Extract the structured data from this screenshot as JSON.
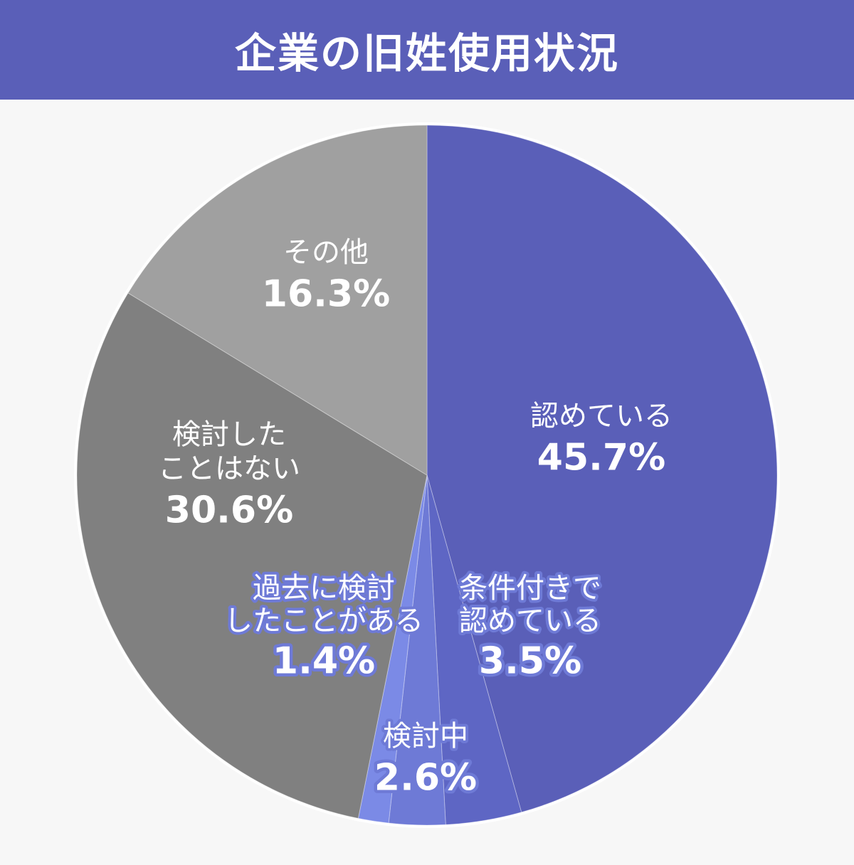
{
  "header": {
    "title": "企業の旧姓使用状況"
  },
  "chart_data": {
    "type": "pie",
    "title": "企業の旧姓使用状況",
    "unit": "%",
    "start": "12 o'clock",
    "direction": "clockwise",
    "slices": [
      {
        "label_lines": [
          "認めている"
        ],
        "value": 45.7,
        "value_text": "45.7%",
        "color": "#5a5fb8",
        "label_style": "plain"
      },
      {
        "label_lines": [
          "条件付きで",
          "認めている"
        ],
        "value": 3.5,
        "value_text": "3.5%",
        "color": "#5e66c4",
        "label_style": "halo"
      },
      {
        "label_lines": [
          "検討中"
        ],
        "value": 2.6,
        "value_text": "2.6%",
        "color": "#6e7ad6",
        "label_style": "halo"
      },
      {
        "label_lines": [
          "過去に検討",
          "したことがある"
        ],
        "value": 1.4,
        "value_text": "1.4%",
        "color": "#7b8ae6",
        "label_style": "halo"
      },
      {
        "label_lines": [
          "検討した",
          "ことはない"
        ],
        "value": 30.6,
        "value_text": "30.6%",
        "color": "#808080",
        "label_style": "plain"
      },
      {
        "label_lines": [
          "その他"
        ],
        "value": 16.3,
        "value_text": "16.3%",
        "color": "#a0a0a0",
        "label_style": "plain"
      }
    ]
  }
}
